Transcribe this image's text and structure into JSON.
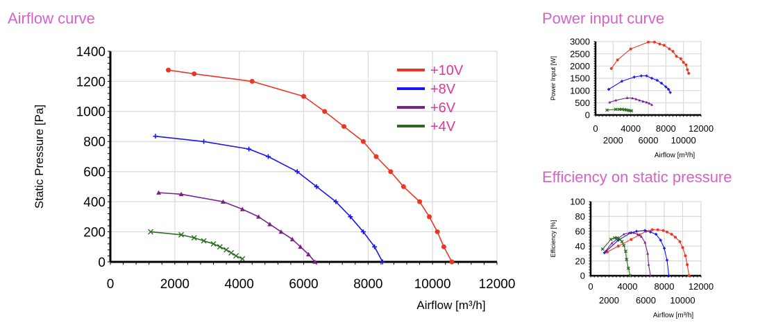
{
  "titles": {
    "airflow": "Airflow curve",
    "power": "Power input curve",
    "efficiency": "Efficiency on static pressure"
  },
  "colors": {
    "title": "#d563c6",
    "legend_text": "#e0359c",
    "+10V": "#ee3524",
    "+8V": "#1515f5",
    "+6V": "#7a1f8c",
    "+4V": "#2e6b22",
    "grid": "#d9d9d9"
  },
  "chart_data": [
    {
      "type": "line",
      "title": "Airflow curve",
      "xlabel": "Airflow [m³/h]",
      "ylabel": "Static Pressure [Pa]",
      "xlim": [
        0,
        12000
      ],
      "ylim": [
        0,
        1400
      ],
      "xticks": [
        "0",
        "2000",
        "4000",
        "6000",
        "8000",
        "10000",
        "12000"
      ],
      "yticks": [
        "0",
        "200",
        "400",
        "600",
        "800",
        "1000",
        "1200",
        "1400"
      ],
      "grid": true,
      "legend": "top-right",
      "series": [
        {
          "name": "+10V",
          "marker": "circle",
          "x": [
            1800,
            2600,
            4400,
            6000,
            6650,
            7250,
            7850,
            8250,
            8700,
            9100,
            9600,
            9900,
            10150,
            10350,
            10600
          ],
          "y": [
            1275,
            1250,
            1200,
            1100,
            1000,
            900,
            800,
            700,
            600,
            500,
            400,
            300,
            200,
            100,
            0
          ]
        },
        {
          "name": "+8V",
          "marker": "plus",
          "x": [
            1400,
            2900,
            4300,
            4900,
            5800,
            6400,
            7000,
            7450,
            7850,
            8200,
            8450
          ],
          "y": [
            835,
            800,
            750,
            700,
            600,
            500,
            400,
            300,
            200,
            100,
            0
          ]
        },
        {
          "name": "+6V",
          "marker": "triangle",
          "x": [
            1500,
            2200,
            3500,
            4100,
            4600,
            4950,
            5300,
            5650,
            5900,
            6150,
            6350
          ],
          "y": [
            460,
            450,
            400,
            350,
            300,
            250,
            200,
            150,
            100,
            50,
            0
          ]
        },
        {
          "name": "+4V",
          "marker": "cross",
          "x": [
            1250,
            2200,
            2600,
            2900,
            3200,
            3400,
            3600,
            3750,
            3900,
            4100
          ],
          "y": [
            200,
            180,
            160,
            140,
            120,
            100,
            80,
            60,
            40,
            20
          ]
        }
      ]
    },
    {
      "type": "line",
      "title": "Power input curve",
      "xlabel": "Airflow [m³/h]",
      "ylabel": "Power Input [W]",
      "xlim": [
        0,
        12000
      ],
      "ylim": [
        0,
        3000
      ],
      "xticks": [
        "0",
        "2000",
        "4000",
        "6000",
        "8000",
        "10000",
        "12000"
      ],
      "yticks": [
        "0",
        "500",
        "1000",
        "1500",
        "2000",
        "2500",
        "3000"
      ],
      "grid": true,
      "series": [
        {
          "name": "+10V",
          "marker": "circle",
          "x": [
            1800,
            2500,
            4000,
            6000,
            6700,
            7300,
            7800,
            8400,
            8800,
            9200,
            9700,
            10000,
            10300,
            10450,
            10600
          ],
          "y": [
            1900,
            2250,
            2700,
            2980,
            2980,
            2900,
            2850,
            2700,
            2600,
            2400,
            2300,
            2150,
            2050,
            1850,
            1700
          ]
        },
        {
          "name": "+8V",
          "marker": "plus",
          "x": [
            1500,
            3000,
            4400,
            5200,
            5800,
            6400,
            7000,
            7500,
            8000,
            8300,
            8500
          ],
          "y": [
            1050,
            1380,
            1550,
            1600,
            1600,
            1500,
            1420,
            1300,
            1150,
            1050,
            920
          ]
        },
        {
          "name": "+6V",
          "marker": "triangle",
          "x": [
            1600,
            2300,
            3600,
            4200,
            4600,
            5000,
            5400,
            5800,
            6100,
            6400
          ],
          "y": [
            520,
            600,
            700,
            690,
            650,
            600,
            560,
            520,
            480,
            420
          ]
        },
        {
          "name": "+4V",
          "marker": "cross",
          "x": [
            1300,
            2300,
            2700,
            3000,
            3300,
            3500,
            3700,
            3900,
            4100
          ],
          "y": [
            200,
            230,
            230,
            230,
            220,
            210,
            190,
            180,
            170
          ]
        }
      ]
    },
    {
      "type": "line",
      "title": "Efficiency on static pressure",
      "xlabel": "Airflow [m³/h]",
      "ylabel": "Efficiency [%]",
      "xlim": [
        0,
        12000
      ],
      "ylim": [
        0,
        100
      ],
      "xticks": [
        "0",
        "2000",
        "4000",
        "6000",
        "8000",
        "10000",
        "12000"
      ],
      "yticks": [
        "0",
        "20",
        "40",
        "60",
        "80",
        "100"
      ],
      "grid": true,
      "series": [
        {
          "name": "+10V",
          "marker": "circle",
          "x": [
            1800,
            3000,
            4400,
            5300,
            6000,
            6700,
            7300,
            7900,
            8300,
            8800,
            9200,
            9700,
            10000,
            10300,
            10500,
            10700
          ],
          "y": [
            32,
            40,
            49,
            55,
            60,
            62,
            62,
            61,
            59,
            56,
            52,
            46,
            38,
            27,
            15,
            0
          ]
        },
        {
          "name": "+8V",
          "marker": "plus",
          "x": [
            1500,
            3000,
            4400,
            5000,
            5900,
            6500,
            7100,
            7600,
            8000,
            8300,
            8500
          ],
          "y": [
            31,
            48,
            58,
            60,
            61,
            59,
            56,
            48,
            37,
            21,
            0
          ]
        },
        {
          "name": "+6V",
          "marker": "triangle",
          "x": [
            1600,
            2300,
            3600,
            4200,
            4700,
            5100,
            5500,
            5900,
            6200,
            6300,
            6500
          ],
          "y": [
            33,
            44,
            56,
            58,
            58,
            56,
            53,
            45,
            30,
            15,
            0
          ]
        },
        {
          "name": "+4V",
          "marker": "cross",
          "x": [
            1300,
            2200,
            2600,
            2900,
            3200,
            3400,
            3600,
            3800,
            3900,
            4100,
            4300
          ],
          "y": [
            36,
            49,
            51,
            51,
            49,
            46,
            41,
            33,
            22,
            10,
            0
          ]
        }
      ]
    }
  ]
}
